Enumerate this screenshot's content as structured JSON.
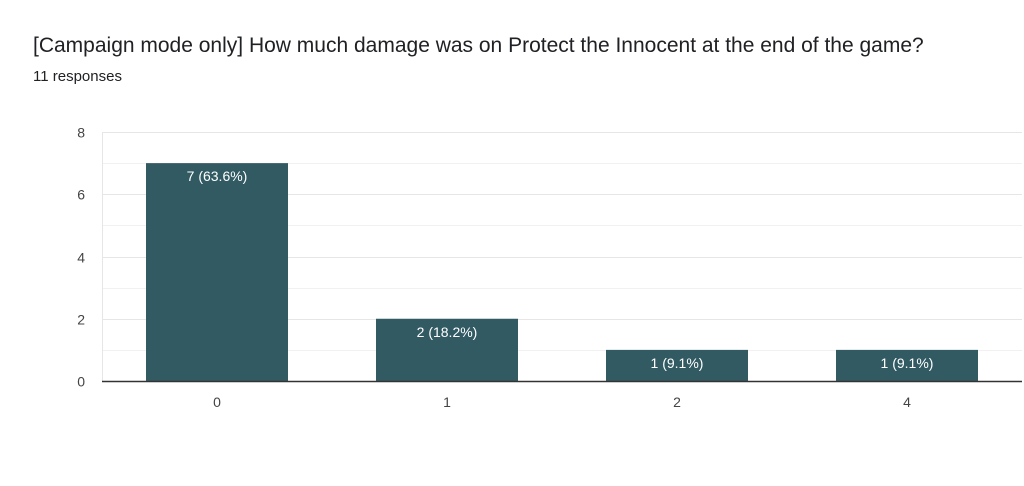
{
  "header": {
    "title": "[Campaign mode only] How much damage was on Protect the Innocent at the end of the game?",
    "subtitle": "11 responses"
  },
  "colors": {
    "bar": "#325a63",
    "grid": "#e6e6e6",
    "axis": "#333333"
  },
  "chart_data": {
    "type": "bar",
    "title": "[Campaign mode only] How much damage was on Protect the Innocent at the end of the game?",
    "xlabel": "",
    "ylabel": "",
    "categories": [
      "0",
      "1",
      "2",
      "4"
    ],
    "values": [
      7,
      2,
      1,
      1
    ],
    "data_labels": [
      "7 (63.6%)",
      "2 (18.2%)",
      "1 (9.1%)",
      "1 (9.1%)"
    ],
    "ylim": [
      0,
      8
    ],
    "y_ticks": [
      0,
      2,
      4,
      6,
      8
    ],
    "grid": true,
    "legend": "none"
  }
}
